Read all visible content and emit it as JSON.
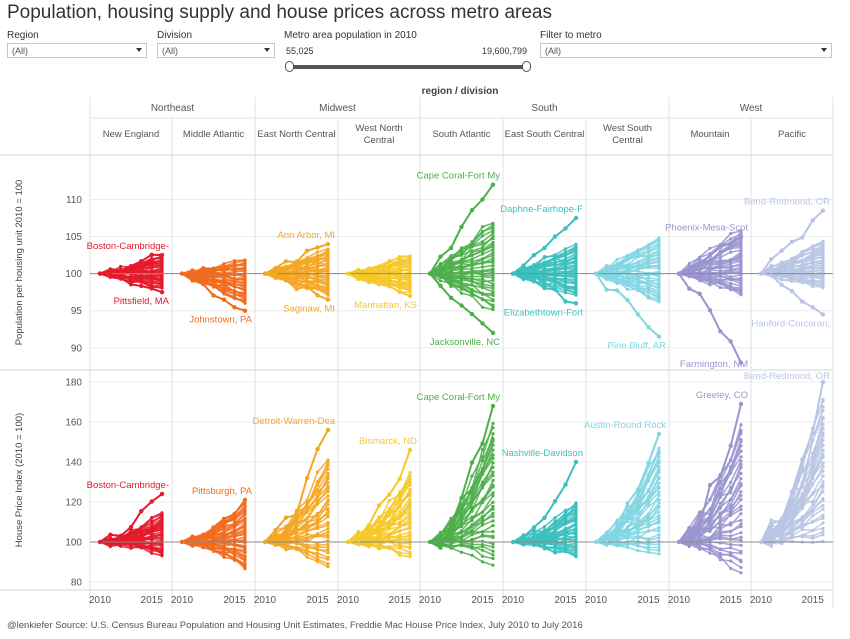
{
  "title": "Population, housing supply and house prices across metro areas",
  "filters": {
    "region": {
      "label": "Region",
      "value": "(All)"
    },
    "division": {
      "label": "Division",
      "value": "(All)"
    },
    "population": {
      "label": "Metro area population in 2010",
      "min_label": "55,025",
      "max_label": "19,600,799"
    },
    "metro": {
      "label": "Filter to metro",
      "value": "(All)"
    }
  },
  "footer": "@lenkiefer Source: U.S. Census Bureau Population and Housing Unit Estimates, Freddie Mac House Price Index, July 2010 to July 2016",
  "chart_data": {
    "type": "line",
    "column_header": "region / division",
    "x_ticks": [
      "2010",
      "2015"
    ],
    "x_range": [
      2010,
      2016
    ],
    "regions": [
      {
        "name": "Northeast",
        "divisions": [
          0,
          1
        ]
      },
      {
        "name": "Midwest",
        "divisions": [
          2,
          3
        ]
      },
      {
        "name": "South",
        "divisions": [
          4,
          5,
          6
        ]
      },
      {
        "name": "West",
        "divisions": [
          7,
          8
        ]
      }
    ],
    "divisions": [
      {
        "name": "New England",
        "color": "#e41a2c"
      },
      {
        "name": "Middle Atlantic",
        "color": "#f26b1d"
      },
      {
        "name": "East North Central",
        "color": "#f5a623"
      },
      {
        "name": "West North Central",
        "color": "#f5c92b"
      },
      {
        "name": "South Atlantic",
        "color": "#4daf4a"
      },
      {
        "name": "East South Central",
        "color": "#3bbfbf"
      },
      {
        "name": "West South Central",
        "color": "#83d6e3"
      },
      {
        "name": "Mountain",
        "color": "#9a95d0"
      },
      {
        "name": "Pacific",
        "color": "#b8c6e3"
      }
    ],
    "rows": [
      {
        "ylabel": "Population per housing unit 2010 = 100",
        "ylim": [
          87,
          116
        ],
        "yticks": [
          90,
          95,
          100,
          105,
          110
        ],
        "reference": 100,
        "division_range": [
          {
            "low": 98,
            "high": 102.5
          },
          {
            "low": 96,
            "high": 102
          },
          {
            "low": 97,
            "high": 103.5
          },
          {
            "low": 97.5,
            "high": 102.5
          },
          {
            "low": 95,
            "high": 107
          },
          {
            "low": 97,
            "high": 104
          },
          {
            "low": 96,
            "high": 105
          },
          {
            "low": 97,
            "high": 106
          },
          {
            "low": 98,
            "high": 104.5
          }
        ],
        "highlights": [
          {
            "division": 0,
            "label": "Boston-Cambridge-",
            "end": 102.5
          },
          {
            "division": 0,
            "label": "Pittsfield, MA",
            "end": 97.5
          },
          {
            "division": 1,
            "label": "Johnstown, PA",
            "end": 95
          },
          {
            "division": 2,
            "label": "Ann Arbor, MI",
            "end": 104
          },
          {
            "division": 2,
            "label": "Saginaw, MI",
            "end": 96.5
          },
          {
            "division": 3,
            "label": "Manhattan, KS",
            "end": 97
          },
          {
            "division": 4,
            "label": "Cape Coral-Fort My",
            "end": 112
          },
          {
            "division": 4,
            "label": "Jacksonville, NC",
            "end": 92
          },
          {
            "division": 5,
            "label": "Daphne-Fairhope-F",
            "end": 107.5
          },
          {
            "division": 5,
            "label": "Elizabethtown-Fort",
            "end": 96
          },
          {
            "division": 6,
            "label": "Pine Bluff, AR",
            "end": 91.5
          },
          {
            "division": 7,
            "label": "Phoenix-Mesa-Scot",
            "end": 105
          },
          {
            "division": 7,
            "label": "Farmington, NM",
            "end": 88
          },
          {
            "division": 8,
            "label": "Bend-Redmond, OR",
            "end": 108.5
          },
          {
            "division": 8,
            "label": "Hanford-Corcoran,",
            "end": 94.5
          }
        ]
      },
      {
        "ylabel": "House Price Index (2010 = 100)",
        "ylim": [
          76,
          186
        ],
        "yticks": [
          80,
          100,
          120,
          140,
          160,
          180
        ],
        "reference": 100,
        "division_range": [
          {
            "low": 93,
            "high": 115
          },
          {
            "low": 86,
            "high": 120
          },
          {
            "low": 87,
            "high": 142
          },
          {
            "low": 92,
            "high": 135
          },
          {
            "low": 88,
            "high": 160
          },
          {
            "low": 92,
            "high": 120
          },
          {
            "low": 94,
            "high": 148
          },
          {
            "low": 84,
            "high": 160
          },
          {
            "low": 100,
            "high": 173
          }
        ],
        "highlights": [
          {
            "division": 0,
            "label": "Boston-Cambridge-",
            "end": 124
          },
          {
            "division": 1,
            "label": "Pittsburgh, PA",
            "end": 121
          },
          {
            "division": 2,
            "label": "Detroit-Warren-Dea",
            "end": 156
          },
          {
            "division": 3,
            "label": "Bismarck, ND",
            "end": 146
          },
          {
            "division": 4,
            "label": "Cape Coral-Fort My",
            "end": 168
          },
          {
            "division": 5,
            "label": "Nashville-Davidson",
            "end": 140
          },
          {
            "division": 6,
            "label": "Austin-Round Rock",
            "end": 154
          },
          {
            "division": 7,
            "label": "Greeley, CO",
            "end": 169
          },
          {
            "division": 8,
            "label": "Bend-Redmond, OR",
            "end": 180
          }
        ]
      }
    ]
  }
}
